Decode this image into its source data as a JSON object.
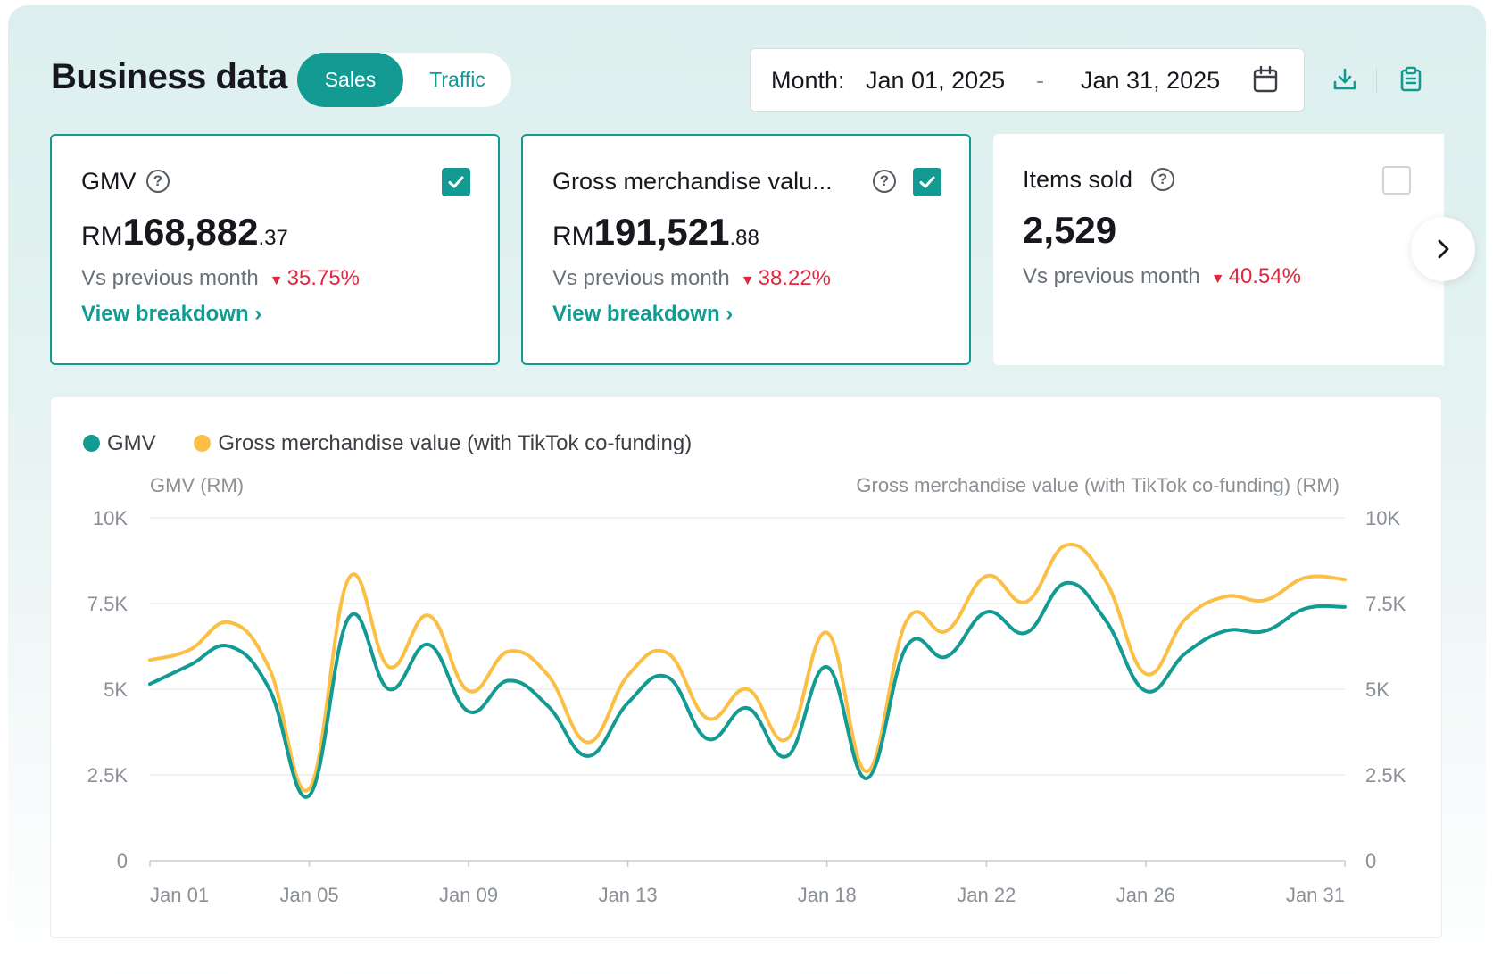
{
  "header": {
    "title": "Business data",
    "tabs": [
      {
        "label": "Sales",
        "active": true
      },
      {
        "label": "Traffic",
        "active": false
      }
    ]
  },
  "date_range": {
    "prefix": "Month:",
    "start": "Jan 01, 2025",
    "separator": "-",
    "end": "Jan 31, 2025"
  },
  "toolbar": {
    "download_icon": "download-icon",
    "report_icon": "clipboard-icon"
  },
  "metrics": [
    {
      "label": "GMV",
      "currency": "RM",
      "value_main": "168,882",
      "value_decimal": ".37",
      "compare_label": "Vs previous month",
      "change": "35.75%",
      "direction": "down",
      "link": "View breakdown",
      "checked": true
    },
    {
      "label": "Gross merchandise valu...",
      "currency": "RM",
      "value_main": "191,521",
      "value_decimal": ".88",
      "compare_label": "Vs previous month",
      "change": "38.22%",
      "direction": "down",
      "link": "View breakdown",
      "checked": true
    },
    {
      "label": "Items sold",
      "currency": "",
      "value_main": "2,529",
      "value_decimal": "",
      "compare_label": "Vs previous month",
      "change": "40.54%",
      "direction": "down",
      "link": "",
      "checked": false
    }
  ],
  "colors": {
    "accent": "#139b93",
    "gmv_series": "#139b93",
    "gmv_cofund_series": "#fbbf45",
    "negative": "#e0283f"
  },
  "chart_data": {
    "type": "line",
    "legend": [
      "GMV",
      "Gross merchandise value (with TikTok co-funding)"
    ],
    "legend_position": "top-left",
    "ylabel_left": "GMV (RM)",
    "ylabel_right": "Gross merchandise value (with TikTok co-funding) (RM)",
    "ylim": [
      0,
      10000
    ],
    "yticks": [
      0,
      2500,
      5000,
      7500,
      10000
    ],
    "ytick_labels": [
      "0",
      "2.5K",
      "5K",
      "7.5K",
      "10K"
    ],
    "x_tick_labels": [
      "Jan 01",
      "Jan 05",
      "Jan 09",
      "Jan 13",
      "Jan 18",
      "Jan 22",
      "Jan 26",
      "Jan 31"
    ],
    "x_tick_days": [
      1,
      5,
      9,
      13,
      18,
      22,
      26,
      31
    ],
    "grid": true,
    "x": [
      "Jan 01",
      "Jan 02",
      "Jan 03",
      "Jan 04",
      "Jan 05",
      "Jan 06",
      "Jan 07",
      "Jan 08",
      "Jan 09",
      "Jan 10",
      "Jan 11",
      "Jan 12",
      "Jan 13",
      "Jan 14",
      "Jan 15",
      "Jan 16",
      "Jan 17",
      "Jan 18",
      "Jan 19",
      "Jan 20",
      "Jan 21",
      "Jan 22",
      "Jan 23",
      "Jan 24",
      "Jan 25",
      "Jan 26",
      "Jan 27",
      "Jan 28",
      "Jan 29",
      "Jan 30",
      "Jan 31"
    ],
    "series": [
      {
        "name": "GMV",
        "axis": "left",
        "values": [
          5150,
          5700,
          6250,
          5000,
          1900,
          7100,
          5000,
          6300,
          4350,
          5250,
          4500,
          3050,
          4600,
          5350,
          3550,
          4450,
          3050,
          5650,
          2400,
          6250,
          5950,
          7250,
          6650,
          8100,
          7000,
          4950,
          6050,
          6700,
          6700,
          7350,
          7400
        ]
      },
      {
        "name": "Gross merchandise value (with TikTok co-funding)",
        "axis": "right",
        "values": [
          5850,
          6150,
          6950,
          5600,
          2100,
          8250,
          5650,
          7150,
          4950,
          6100,
          5400,
          3450,
          5400,
          6050,
          4150,
          5000,
          3550,
          6650,
          2600,
          7000,
          6700,
          8300,
          7550,
          9200,
          8150,
          5450,
          7050,
          7700,
          7600,
          8250,
          8200
        ]
      }
    ]
  }
}
